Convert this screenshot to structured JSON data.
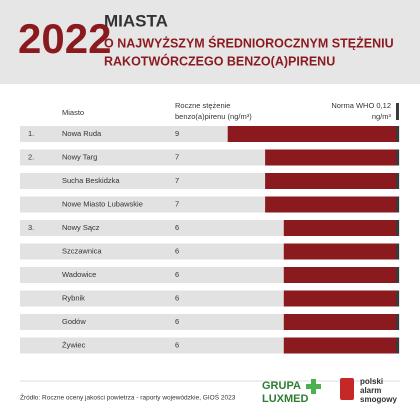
{
  "chart_data": {
    "type": "table-bar",
    "title": {
      "year": "2022",
      "line1": "MIASTA",
      "line2": "O NAJWYŻSZYM ŚREDNIOROCZNYM STĘŻENIU",
      "line3": "RAKOTWÓRCZEGO BENZO(A)PIRENU"
    },
    "columns": {
      "city": "Miasto",
      "value": [
        "Roczne stężenie",
        "benzo(a)pirenu (ng/m³)"
      ]
    },
    "norm": {
      "label": "Norma WHO 0,12",
      "unit": "ng/m³",
      "value": 0.12,
      "color": "#3a3a3a"
    },
    "ranks": [
      "1.",
      "2.",
      null,
      null,
      "3.",
      null,
      null,
      null,
      null,
      null
    ],
    "categories": [
      "Nowa Ruda",
      "Nowy Targ",
      "Sucha Beskidzka",
      "Nowe Miasto Lubawskie",
      "Nowy Sącz",
      "Szczawnica",
      "Wadowice",
      "Rybnik",
      "Godów",
      "Żywiec"
    ],
    "values": [
      9,
      7,
      7,
      7,
      6,
      6,
      6,
      6,
      6,
      6
    ],
    "color": "#8b1a1f",
    "source": "Źródło: Roczne oceny jakości powietrza - raporty wojewódzkie, GIOŚ 2023",
    "logos": {
      "luxmed1": "GRUPA",
      "luxmed2": "LUXMED",
      "pas1": "polski",
      "pas2": "alarm",
      "pas3": "smogowy"
    }
  }
}
